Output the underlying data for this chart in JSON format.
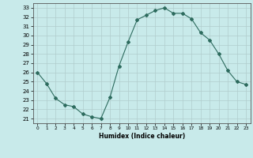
{
  "x": [
    0,
    1,
    2,
    3,
    4,
    5,
    6,
    7,
    8,
    9,
    10,
    11,
    12,
    13,
    14,
    15,
    16,
    17,
    18,
    19,
    20,
    21,
    22,
    23
  ],
  "y": [
    26,
    24.8,
    23.2,
    22.5,
    22.3,
    21.5,
    21.2,
    21.0,
    23.3,
    26.7,
    29.3,
    31.7,
    32.2,
    32.7,
    33.0,
    32.4,
    32.4,
    31.8,
    30.3,
    29.5,
    28.0,
    26.2,
    25.0,
    24.7
  ],
  "line_color": "#2d6b5e",
  "marker": "D",
  "marker_size": 2,
  "bg_color": "#c8eaea",
  "grid_color": "#b0cccc",
  "xlabel": "Humidex (Indice chaleur)",
  "ylabel_ticks": [
    21,
    22,
    23,
    24,
    25,
    26,
    27,
    28,
    29,
    30,
    31,
    32,
    33
  ],
  "ylim": [
    20.5,
    33.5
  ],
  "xlim": [
    -0.5,
    23.5
  ]
}
